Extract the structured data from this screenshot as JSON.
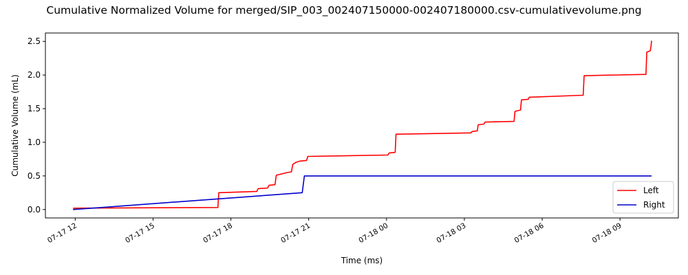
{
  "chart_data": {
    "type": "line",
    "title": "Cumulative Normalized Volume for merged/SIP_003_002407150000-002407180000.csv-cumulativevolume.png",
    "xlabel": "Time (ms)",
    "ylabel": "Cumulative Volume (mL)",
    "xlim": [
      "2024-07-17 10:51",
      "2024-07-18 11:15"
    ],
    "ylim": [
      -0.125,
      2.625
    ],
    "x_ticks": [
      {
        "t": "2024-07-17 12:00",
        "label": "07-17 12"
      },
      {
        "t": "2024-07-17 15:00",
        "label": "07-17 15"
      },
      {
        "t": "2024-07-17 18:00",
        "label": "07-17 18"
      },
      {
        "t": "2024-07-17 21:00",
        "label": "07-17 21"
      },
      {
        "t": "2024-07-18 00:00",
        "label": "07-18 00"
      },
      {
        "t": "2024-07-18 03:00",
        "label": "07-18 03"
      },
      {
        "t": "2024-07-18 06:00",
        "label": "07-18 06"
      },
      {
        "t": "2024-07-18 09:00",
        "label": "07-18 09"
      }
    ],
    "y_ticks": [
      0.0,
      0.5,
      1.0,
      1.5,
      2.0,
      2.5
    ],
    "y_tick_labels": [
      "0.0",
      "0.5",
      "1.0",
      "1.5",
      "2.0",
      "2.5"
    ],
    "grid": false,
    "legend_position": "lower-right",
    "series": [
      {
        "name": "Left",
        "color": "#ff0000",
        "points": [
          [
            "2024-07-17 11:55",
            0.02
          ],
          [
            "2024-07-17 17:30",
            0.03
          ],
          [
            "2024-07-17 17:32",
            0.25
          ],
          [
            "2024-07-17 19:00",
            0.27
          ],
          [
            "2024-07-17 19:03",
            0.31
          ],
          [
            "2024-07-17 19:25",
            0.32
          ],
          [
            "2024-07-17 19:28",
            0.36
          ],
          [
            "2024-07-17 19:42",
            0.37
          ],
          [
            "2024-07-17 19:45",
            0.51
          ],
          [
            "2024-07-17 20:10",
            0.55
          ],
          [
            "2024-07-17 20:20",
            0.56
          ],
          [
            "2024-07-17 20:23",
            0.67
          ],
          [
            "2024-07-17 20:30",
            0.7
          ],
          [
            "2024-07-17 20:40",
            0.72
          ],
          [
            "2024-07-17 20:55",
            0.73
          ],
          [
            "2024-07-17 20:58",
            0.79
          ],
          [
            "2024-07-18 00:03",
            0.81
          ],
          [
            "2024-07-18 00:06",
            0.84
          ],
          [
            "2024-07-18 00:20",
            0.85
          ],
          [
            "2024-07-18 00:22",
            1.12
          ],
          [
            "2024-07-18 03:15",
            1.14
          ],
          [
            "2024-07-18 03:18",
            1.16
          ],
          [
            "2024-07-18 03:30",
            1.17
          ],
          [
            "2024-07-18 03:32",
            1.26
          ],
          [
            "2024-07-18 03:45",
            1.27
          ],
          [
            "2024-07-18 03:48",
            1.3
          ],
          [
            "2024-07-18 04:55",
            1.31
          ],
          [
            "2024-07-18 04:57",
            1.46
          ],
          [
            "2024-07-18 05:10",
            1.48
          ],
          [
            "2024-07-18 05:12",
            1.63
          ],
          [
            "2024-07-18 05:28",
            1.64
          ],
          [
            "2024-07-18 05:30",
            1.67
          ],
          [
            "2024-07-18 07:35",
            1.7
          ],
          [
            "2024-07-18 07:37",
            1.99
          ],
          [
            "2024-07-18 10:00",
            2.01
          ],
          [
            "2024-07-18 10:02",
            2.34
          ],
          [
            "2024-07-18 10:10",
            2.36
          ],
          [
            "2024-07-18 10:12",
            2.44
          ],
          [
            "2024-07-18 10:13",
            2.51
          ]
        ]
      },
      {
        "name": "Right",
        "color": "#0000cc",
        "points": [
          [
            "2024-07-17 11:55",
            0.0
          ],
          [
            "2024-07-17 20:45",
            0.25
          ],
          [
            "2024-07-17 20:50",
            0.5
          ],
          [
            "2024-07-18 10:13",
            0.5
          ]
        ]
      }
    ]
  }
}
